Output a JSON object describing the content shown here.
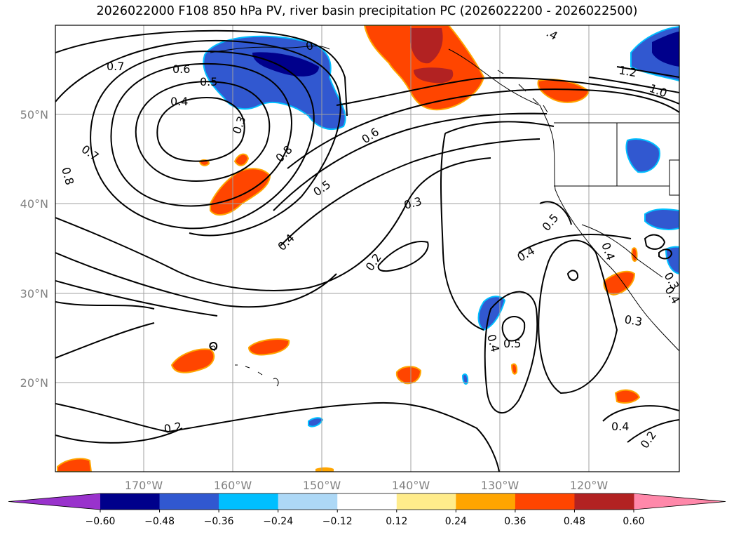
{
  "title": "2026022000 F108 850 hPa PV, river basin precipitation PC (2026022200 - 2026022500)",
  "map": {
    "lat_labels": [
      "50°N",
      "40°N",
      "30°N",
      "20°N"
    ],
    "lon_labels": [
      "170°W",
      "160°W",
      "150°W",
      "140°W",
      "130°W",
      "120°W"
    ]
  },
  "contour_labels": [
    "0.7",
    "0.6",
    "0.5",
    "0.4",
    "0.3",
    "0.7",
    "0.8",
    "0.8",
    "0.6",
    "0.5",
    "0.4",
    "0.3",
    "0.2",
    "0.4",
    "0.5",
    "0.4",
    "0.5",
    "0.3",
    "0.4",
    "0.2",
    "0.4",
    "0.2",
    "0.3",
    "0.4",
    "1.2",
    "1.0",
    ".4",
    "0"
  ],
  "colorbar": {
    "colors": [
      "#9932cc",
      "#00008b",
      "#3158d0",
      "#00bfff",
      "#add8f6",
      "#ffffff",
      "#ffec8b",
      "#ffa500",
      "#ff4500",
      "#b22222",
      "#ff88aa"
    ],
    "ticks": [
      "−0.60",
      "−0.48",
      "−0.36",
      "−0.24",
      "−0.12",
      "0.12",
      "0.24",
      "0.36",
      "0.48",
      "0.60"
    ]
  }
}
